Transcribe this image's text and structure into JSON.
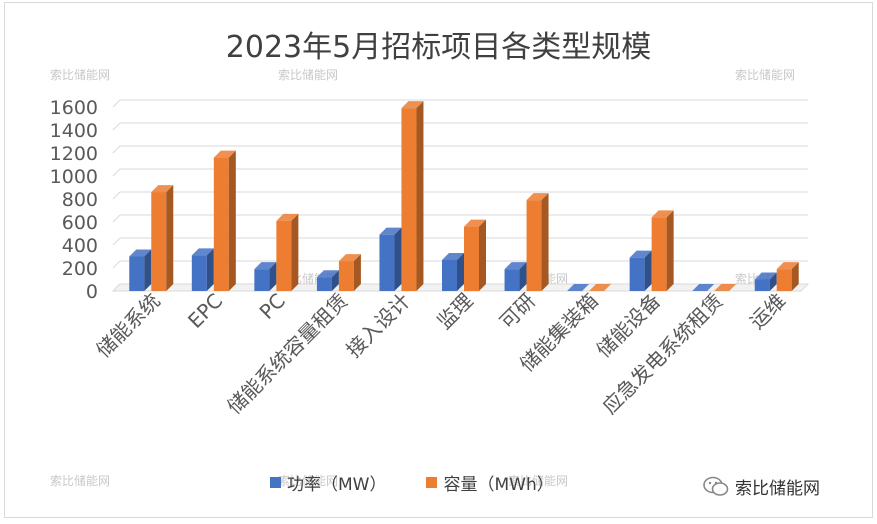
{
  "chart_data": {
    "type": "bar",
    "title": "2023年5月招标项目各类型规模",
    "categories": [
      "储能系统",
      "EPC",
      "PC",
      "储能系统容量租赁",
      "接入设计",
      "监理",
      "可研",
      "储能集装箱",
      "储能设备",
      "应急发电系统租赁",
      "运维"
    ],
    "series": [
      {
        "name": "功率（MW）",
        "color": "#4472c4",
        "values": [
          300,
          310,
          190,
          120,
          490,
          270,
          190,
          0,
          290,
          0,
          100
        ]
      },
      {
        "name": "容量（MWh）",
        "color": "#ed7d31",
        "values": [
          860,
          1160,
          610,
          260,
          1590,
          560,
          790,
          0,
          640,
          0,
          190
        ]
      }
    ],
    "yticks": [
      0,
      200,
      400,
      600,
      800,
      1000,
      1200,
      1400,
      1600
    ],
    "ylim": [
      0,
      1600
    ],
    "grid": true,
    "legend_position": "bottom"
  },
  "watermark_text": "索比储能网",
  "brand_text": "索比储能网"
}
